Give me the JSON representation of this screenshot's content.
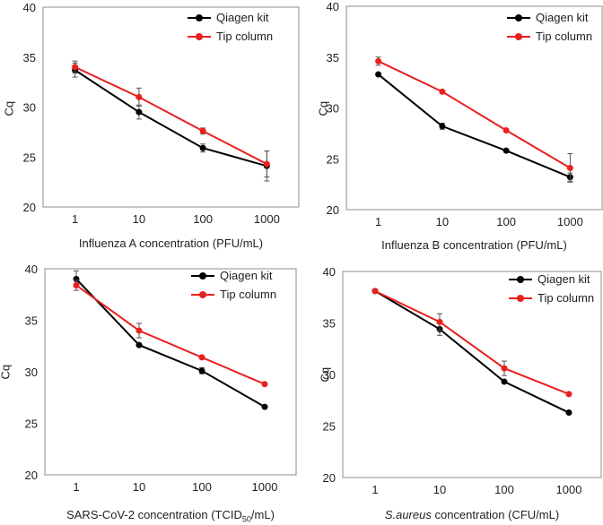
{
  "chart_data": [
    {
      "type": "line",
      "id": "influenza-a",
      "ylabel": "Cq",
      "xlabel_text": "Influenza A concentration (PFU/mL)",
      "categories": [
        "1",
        "10",
        "100",
        "1000"
      ],
      "ylim": [
        20,
        40
      ],
      "yticks": [
        20,
        25,
        30,
        35,
        40
      ],
      "series": [
        {
          "name": "Qiagen kit",
          "color": "#000000",
          "values": [
            33.7,
            29.5,
            25.9,
            24.1
          ],
          "errors": [
            0.7,
            0.7,
            0.4,
            1.5
          ]
        },
        {
          "name": "Tip column",
          "color": "#e8201e",
          "values": [
            34.0,
            31.0,
            27.6,
            24.3
          ],
          "errors": [
            0.6,
            0.9,
            0.3,
            1.3
          ]
        }
      ]
    },
    {
      "type": "line",
      "id": "influenza-b",
      "ylabel": "Cq",
      "xlabel_text": "Influenza B concentration (PFU/mL)",
      "categories": [
        "1",
        "10",
        "100",
        "1000"
      ],
      "ylim": [
        20,
        40
      ],
      "yticks": [
        20,
        25,
        30,
        35,
        40
      ],
      "series": [
        {
          "name": "Qiagen kit",
          "color": "#000000",
          "values": [
            33.3,
            28.2,
            25.8,
            23.2
          ],
          "errors": [
            0.0,
            0.3,
            0.0,
            0.4
          ]
        },
        {
          "name": "Tip column",
          "color": "#e8201e",
          "values": [
            34.6,
            31.6,
            27.8,
            24.1
          ],
          "errors": [
            0.4,
            0.0,
            0.0,
            1.4
          ]
        }
      ]
    },
    {
      "type": "line",
      "id": "sars-cov-2",
      "ylabel": "Cq",
      "xlabel_parts": [
        "SARS-CoV-2 concentration (TCID",
        "50",
        "/mL)"
      ],
      "categories": [
        "1",
        "10",
        "100",
        "1000"
      ],
      "ylim": [
        20,
        40
      ],
      "yticks": [
        20,
        25,
        30,
        35,
        40
      ],
      "series": [
        {
          "name": "Qiagen kit",
          "color": "#000000",
          "values": [
            39.0,
            32.6,
            30.1,
            26.6
          ],
          "errors": [
            0.8,
            0.0,
            0.3,
            0.0
          ]
        },
        {
          "name": "Tip column",
          "color": "#e8201e",
          "values": [
            38.4,
            34.0,
            31.4,
            28.8
          ],
          "errors": [
            0.5,
            0.7,
            0.0,
            0.0
          ]
        }
      ]
    },
    {
      "type": "line",
      "id": "s-aureus",
      "ylabel": "Cq",
      "xlabel_parts": [
        "S.aureus",
        " concentration (CFU/mL)"
      ],
      "categories": [
        "1",
        "10",
        "100",
        "1000"
      ],
      "ylim": [
        20,
        40
      ],
      "yticks": [
        20,
        25,
        30,
        35,
        40
      ],
      "series": [
        {
          "name": "Qiagen kit",
          "color": "#000000",
          "values": [
            38.1,
            34.4,
            29.3,
            26.3
          ],
          "errors": [
            0.0,
            0.6,
            0.0,
            0.0
          ]
        },
        {
          "name": "Tip column",
          "color": "#e8201e",
          "values": [
            38.1,
            35.1,
            30.6,
            28.1
          ],
          "errors": [
            0.0,
            0.8,
            0.7,
            0.0
          ]
        }
      ]
    }
  ]
}
